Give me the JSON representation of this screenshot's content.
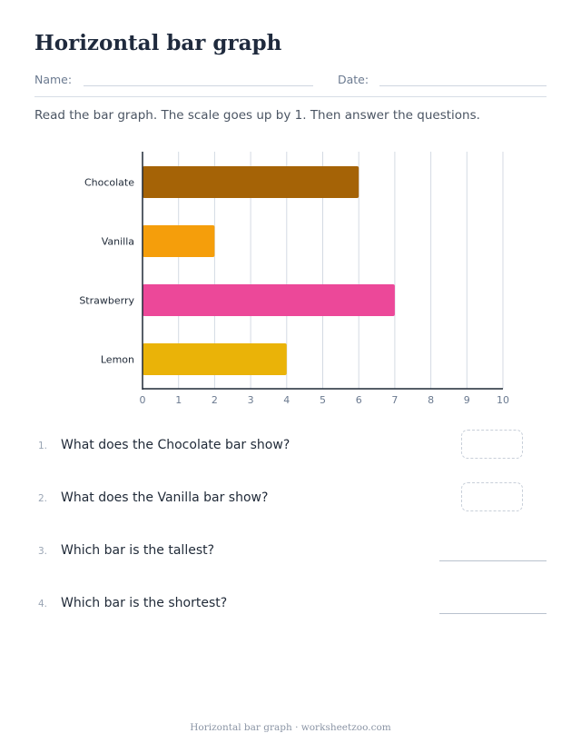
{
  "header": {
    "title": "Horizontal bar graph",
    "name_label": "Name:",
    "date_label": "Date:"
  },
  "instructions": "Read the bar graph. The scale goes up by 1. Then answer the questions.",
  "chart_data": {
    "type": "bar",
    "orientation": "horizontal",
    "categories": [
      "Chocolate",
      "Vanilla",
      "Strawberry",
      "Lemon"
    ],
    "values": [
      6,
      2,
      7,
      4
    ],
    "colors": [
      "#a56306",
      "#f59e0b",
      "#ec4899",
      "#eab308"
    ],
    "xlim": [
      0,
      10
    ],
    "x_ticks": [
      "0",
      "1",
      "2",
      "3",
      "4",
      "5",
      "6",
      "7",
      "8",
      "9",
      "10"
    ],
    "grid": true,
    "title": "",
    "xlabel": "",
    "ylabel": ""
  },
  "questions": [
    {
      "number": "1.",
      "text": "What does the Chocolate bar show?",
      "answer_type": "box"
    },
    {
      "number": "2.",
      "text": "What does the Vanilla bar show?",
      "answer_type": "box"
    },
    {
      "number": "3.",
      "text": "Which bar is the tallest?",
      "answer_type": "line"
    },
    {
      "number": "4.",
      "text": "Which bar is the shortest?",
      "answer_type": "line"
    }
  ],
  "footer": "Horizontal bar graph · worksheetzoo.com"
}
